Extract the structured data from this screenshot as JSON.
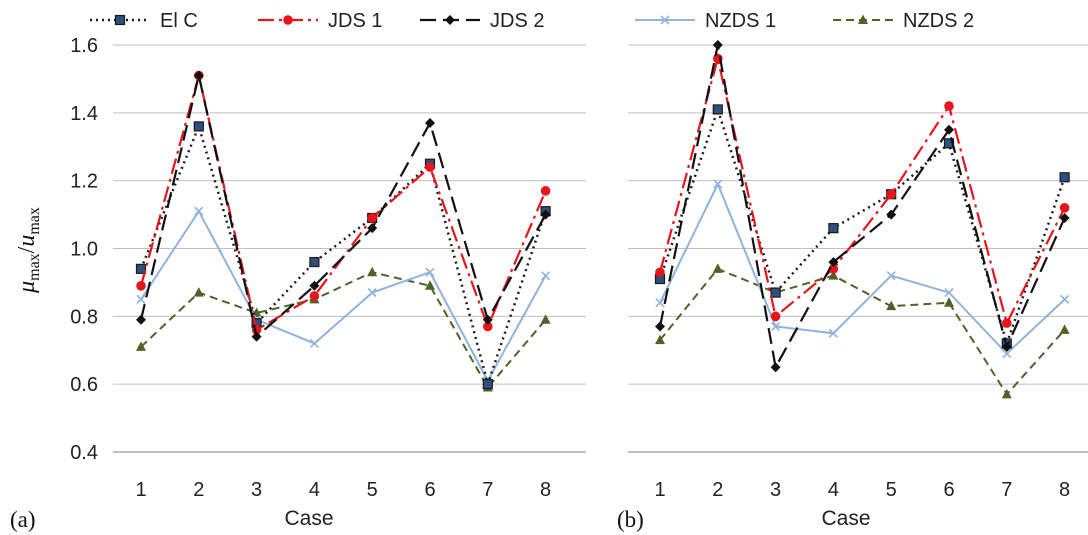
{
  "figure": {
    "ylabel_parts": {
      "mu": "μ",
      "mu_sub": "max",
      "sep": "/",
      "u": "u",
      "u_sub": "max"
    },
    "panels": [
      "(a)",
      "(b)"
    ],
    "xlabel": "Case"
  },
  "colors": {
    "El C": "#1a1a1a",
    "El C marker": "#2f4f7f",
    "JDS 1": "#e8141c",
    "JDS 2": "#111111",
    "NZDS 1": "#8fb3de",
    "NZDS 2": "#4f6228",
    "grid": "#bfbfbf"
  },
  "chart_data": [
    {
      "type": "line",
      "panel": "(a)",
      "xlabel": "Case",
      "ylabel": "μmax/umax",
      "categories": [
        "1",
        "2",
        "3",
        "4",
        "5",
        "6",
        "7",
        "8"
      ],
      "ylim": [
        0.4,
        1.6
      ],
      "yticks": [
        "0.4",
        "0.6",
        "0.8",
        "1.0",
        "1.2",
        "1.4",
        "1.6"
      ],
      "grid": true,
      "legend_position": "top",
      "series": [
        {
          "name": "El C",
          "values": [
            0.94,
            1.36,
            0.78,
            0.96,
            1.09,
            1.25,
            0.6,
            1.11
          ]
        },
        {
          "name": "JDS 1",
          "values": [
            0.89,
            1.51,
            0.76,
            0.86,
            1.09,
            1.24,
            0.77,
            1.17
          ]
        },
        {
          "name": "JDS 2",
          "values": [
            0.79,
            1.51,
            0.74,
            0.89,
            1.06,
            1.37,
            0.79,
            1.1
          ]
        },
        {
          "name": "NZDS 1",
          "values": [
            0.85,
            1.11,
            0.79,
            0.72,
            0.87,
            0.93,
            0.61,
            0.92
          ]
        },
        {
          "name": "NZDS 2",
          "values": [
            0.71,
            0.87,
            0.81,
            0.85,
            0.93,
            0.89,
            0.59,
            0.79
          ]
        }
      ]
    },
    {
      "type": "line",
      "panel": "(b)",
      "xlabel": "Case",
      "categories": [
        "1",
        "2",
        "3",
        "4",
        "5",
        "6",
        "7",
        "8"
      ],
      "ylim": [
        0.4,
        1.6
      ],
      "grid": true,
      "legend_position": "top",
      "series": [
        {
          "name": "El C",
          "values": [
            0.91,
            1.41,
            0.87,
            1.06,
            1.16,
            1.31,
            0.72,
            1.21
          ]
        },
        {
          "name": "JDS 1",
          "values": [
            0.93,
            1.56,
            0.8,
            0.94,
            1.16,
            1.42,
            0.78,
            1.12
          ]
        },
        {
          "name": "JDS 2",
          "values": [
            0.77,
            1.6,
            0.65,
            0.96,
            1.1,
            1.35,
            0.71,
            1.09
          ]
        },
        {
          "name": "NZDS 1",
          "values": [
            0.84,
            1.19,
            0.77,
            0.75,
            0.92,
            0.87,
            0.69,
            0.85
          ]
        },
        {
          "name": "NZDS 2",
          "values": [
            0.73,
            0.94,
            0.87,
            0.92,
            0.83,
            0.84,
            0.57,
            0.76
          ]
        }
      ]
    }
  ]
}
